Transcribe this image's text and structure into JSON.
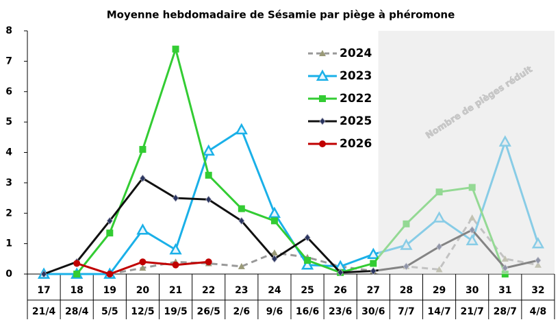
{
  "chart_data": {
    "type": "line",
    "title": "Moyenne hebdomadaire de Sésamie par piège à phéromone",
    "categories": [
      "17",
      "18",
      "19",
      "20",
      "21",
      "22",
      "23",
      "24",
      "25",
      "26",
      "27",
      "28",
      "29",
      "30",
      "31",
      "32"
    ],
    "category_dates": [
      "21/4",
      "28/4",
      "5/5",
      "12/5",
      "19/5",
      "26/5",
      "2/6",
      "9/6",
      "16/6",
      "23/6",
      "30/6",
      "7/7",
      "14/7",
      "21/7",
      "28/7",
      "4/8"
    ],
    "ylim": [
      0,
      8
    ],
    "yticks": [
      0,
      1,
      2,
      3,
      4,
      5,
      6,
      7,
      8
    ],
    "annotation": "Nombre de pièges réduit",
    "series": [
      {
        "name": "2024",
        "color": "#999999",
        "marker": "triangle",
        "dashed": true,
        "values": [
          null,
          null,
          0,
          0.2,
          0.4,
          0.35,
          0.25,
          0.7,
          0.55,
          0.25,
          0.1,
          0.25,
          0.15,
          1.85,
          0.5,
          0.3
        ]
      },
      {
        "name": "2023",
        "color": "#1ab0e8",
        "marker": "triangle-open",
        "dashed": false,
        "values": [
          0,
          0,
          0,
          1.45,
          0.8,
          4.05,
          4.75,
          2.0,
          0.3,
          0.25,
          0.65,
          0.95,
          1.85,
          1.1,
          4.35,
          1.0
        ]
      },
      {
        "name": "2022",
        "color": "#33cc33",
        "marker": "square",
        "dashed": false,
        "values": [
          null,
          0,
          1.35,
          4.1,
          7.4,
          3.25,
          2.15,
          1.75,
          0.45,
          0.05,
          0.35,
          1.65,
          2.7,
          2.85,
          0,
          null
        ]
      },
      {
        "name": "2025",
        "color": "#111111",
        "marker": "diamond",
        "dashed": false,
        "values": [
          0,
          0.4,
          1.75,
          3.15,
          2.5,
          2.45,
          1.75,
          0.5,
          1.2,
          0.05,
          0.1,
          0.25,
          0.9,
          1.45,
          0.2,
          0.45
        ]
      },
      {
        "name": "2026",
        "color": "#c00000",
        "marker": "circle",
        "dashed": false,
        "values": [
          null,
          0.35,
          0,
          0.4,
          0.3,
          0.4,
          null,
          null,
          null,
          null,
          null,
          null,
          null,
          null,
          null,
          null
        ]
      }
    ]
  }
}
